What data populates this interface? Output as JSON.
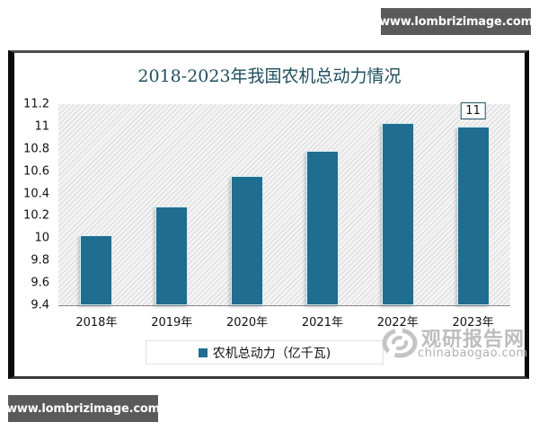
{
  "watermark": {
    "top_text": "www.lombrizimage.com",
    "bottom_text": "www.lombrizimage.com"
  },
  "logo": {
    "cn_text": "观研报告网",
    "en_text": "chinabaogao.com"
  },
  "colors": {
    "bar": "#1f6d8f",
    "title": "#1f4e5f"
  },
  "chart_data": {
    "type": "bar",
    "title": "2018-2023年我国农机总动力情况",
    "xlabel": "",
    "ylabel": "",
    "categories": [
      "2018年",
      "2019年",
      "2020年",
      "2021年",
      "2022年",
      "2023年"
    ],
    "series": [
      {
        "name": "农机总动力（亿千瓦)",
        "values": [
          10.03,
          10.28,
          10.56,
          10.78,
          11.03,
          11.0
        ]
      }
    ],
    "ylim": [
      9.4,
      11.2
    ],
    "yticks": [
      "11.2",
      "11",
      "10.8",
      "10.6",
      "10.4",
      "10.2",
      "10",
      "9.8",
      "9.6",
      "9.4"
    ],
    "annotations": [
      {
        "category": "2023年",
        "text": "11"
      }
    ],
    "grid": false,
    "legend_position": "bottom"
  }
}
